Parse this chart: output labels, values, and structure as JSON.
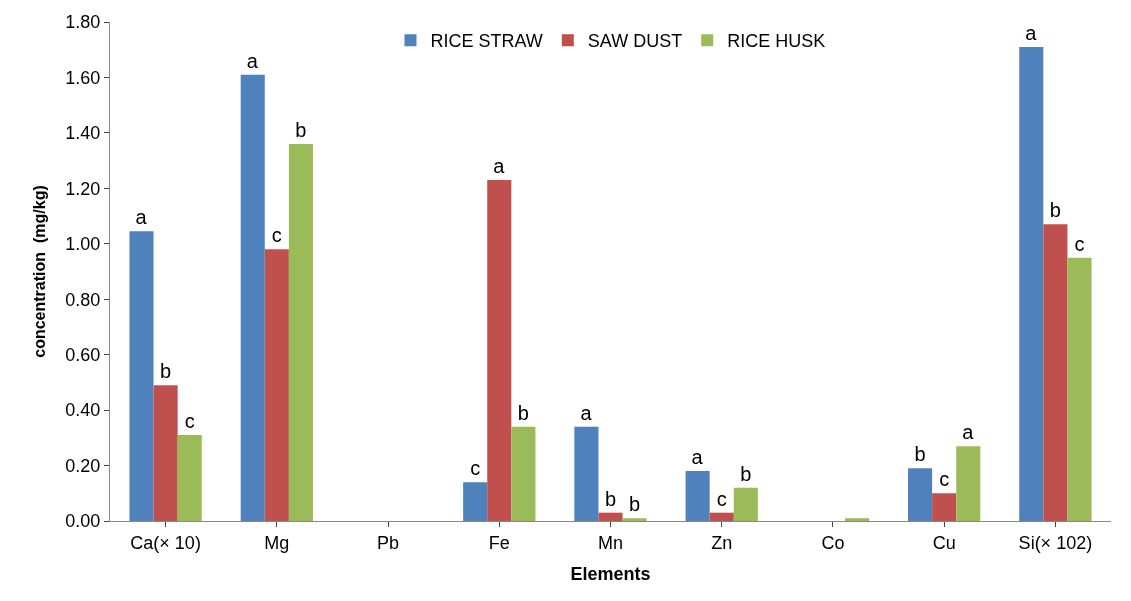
{
  "chart_data": {
    "type": "bar",
    "xlabel": "Elements",
    "ylabel": "concentration  (mg/kg)",
    "categories": [
      "Ca(× 10)",
      "Mg",
      "Pb",
      "Fe",
      "Mn",
      "Zn",
      "Co",
      "Cu",
      "Si(× 102)"
    ],
    "series": [
      {
        "name": "RICE STRAW",
        "color": "#4f81bd",
        "values": [
          1.045,
          1.61,
          null,
          0.14,
          0.34,
          0.18,
          null,
          0.19,
          1.71
        ],
        "value_labels": [
          "a",
          "a",
          null,
          "c",
          "a",
          "a",
          null,
          "b",
          "a"
        ]
      },
      {
        "name": "SAW DUST",
        "color": "#c0504d",
        "values": [
          0.49,
          0.98,
          null,
          1.23,
          0.03,
          0.03,
          null,
          0.1,
          1.07
        ],
        "value_labels": [
          "b",
          "c",
          null,
          "a",
          "b",
          "c",
          null,
          "c",
          "b"
        ]
      },
      {
        "name": "RICE HUSK",
        "color": "#9bbb59",
        "values": [
          0.31,
          1.36,
          null,
          0.34,
          0.01,
          0.12,
          0.01,
          0.27,
          0.95
        ],
        "value_labels": [
          "c",
          "b",
          null,
          "b",
          "b",
          "b",
          null,
          "a",
          "c"
        ]
      }
    ],
    "ylim": [
      0,
      1.8
    ],
    "yticks": [
      {
        "value": 0,
        "label": "0.00"
      },
      {
        "value": 0.2,
        "label": "0.20"
      },
      {
        "value": 0.4,
        "label": "0.40"
      },
      {
        "value": 0.6,
        "label": "0.60"
      },
      {
        "value": 0.8,
        "label": "0.80"
      },
      {
        "value": 1.0,
        "label": "1.00"
      },
      {
        "value": 1.2,
        "label": "1.20"
      },
      {
        "value": 1.4,
        "label": "1.40"
      },
      {
        "value": 1.6,
        "label": "1.60"
      },
      {
        "value": 1.8,
        "label": "1.80"
      }
    ],
    "legend": "top",
    "grid": false
  }
}
